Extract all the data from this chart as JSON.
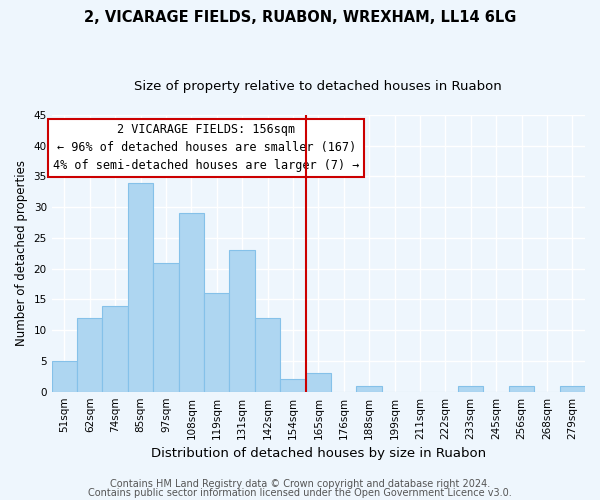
{
  "title": "2, VICARAGE FIELDS, RUABON, WREXHAM, LL14 6LG",
  "subtitle": "Size of property relative to detached houses in Ruabon",
  "xlabel": "Distribution of detached houses by size in Ruabon",
  "ylabel": "Number of detached properties",
  "bin_labels": [
    "51sqm",
    "62sqm",
    "74sqm",
    "85sqm",
    "97sqm",
    "108sqm",
    "119sqm",
    "131sqm",
    "142sqm",
    "154sqm",
    "165sqm",
    "176sqm",
    "188sqm",
    "199sqm",
    "211sqm",
    "222sqm",
    "233sqm",
    "245sqm",
    "256sqm",
    "268sqm",
    "279sqm"
  ],
  "bar_heights": [
    5,
    12,
    14,
    34,
    21,
    29,
    16,
    23,
    12,
    2,
    3,
    0,
    1,
    0,
    0,
    0,
    1,
    0,
    1,
    0,
    1
  ],
  "bar_color": "#aed6f1",
  "bar_edge_color": "#85c1e9",
  "vline_x_index": 9,
  "vline_color": "#cc0000",
  "annotation_title": "2 VICARAGE FIELDS: 156sqm",
  "annotation_line1": "← 96% of detached houses are smaller (167)",
  "annotation_line2": "4% of semi-detached houses are larger (7) →",
  "annotation_box_color": "#ffffff",
  "annotation_box_edge": "#cc0000",
  "footnote1": "Contains HM Land Registry data © Crown copyright and database right 2024.",
  "footnote2": "Contains public sector information licensed under the Open Government Licence v3.0.",
  "ylim": [
    0,
    45
  ],
  "yticks": [
    0,
    5,
    10,
    15,
    20,
    25,
    30,
    35,
    40,
    45
  ],
  "background_color": "#eef6fd",
  "grid_color": "#ffffff",
  "title_fontsize": 10.5,
  "subtitle_fontsize": 9.5,
  "xlabel_fontsize": 9.5,
  "ylabel_fontsize": 8.5,
  "tick_fontsize": 7.5,
  "annotation_fontsize": 8.5,
  "footnote_fontsize": 7
}
